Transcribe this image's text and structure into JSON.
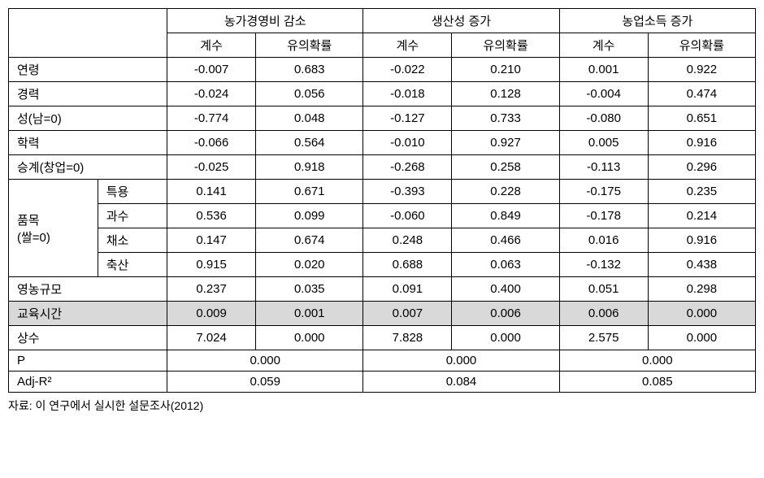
{
  "headerGroups": [
    "농가경영비 감소",
    "생산성 증가",
    "농업소득 증가"
  ],
  "subHeaders": [
    "계수",
    "유의확률"
  ],
  "rowLabels": {
    "age": "연령",
    "career": "경력",
    "sex": "성(남=0)",
    "edu": "학력",
    "succession": "승계(창업=0)",
    "itemGroup": "품목\n(쌀=0)",
    "itemSpecial": "특용",
    "itemFruit": "과수",
    "itemVeg": "채소",
    "itemLivestock": "축산",
    "farmScale": "영농규모",
    "trainingTime": "교육시간",
    "constant": "상수",
    "p": "P",
    "adjR2": "Adj-R²"
  },
  "rows": {
    "age": [
      "-0.007",
      "0.683",
      "-0.022",
      "0.210",
      "0.001",
      "0.922"
    ],
    "career": [
      "-0.024",
      "0.056",
      "-0.018",
      "0.128",
      "-0.004",
      "0.474"
    ],
    "sex": [
      "-0.774",
      "0.048",
      "-0.127",
      "0.733",
      "-0.080",
      "0.651"
    ],
    "edu": [
      "-0.066",
      "0.564",
      "-0.010",
      "0.927",
      "0.005",
      "0.916"
    ],
    "succession": [
      "-0.025",
      "0.918",
      "-0.268",
      "0.258",
      "-0.113",
      "0.296"
    ],
    "itemSpecial": [
      "0.141",
      "0.671",
      "-0.393",
      "0.228",
      "-0.175",
      "0.235"
    ],
    "itemFruit": [
      "0.536",
      "0.099",
      "-0.060",
      "0.849",
      "-0.178",
      "0.214"
    ],
    "itemVeg": [
      "0.147",
      "0.674",
      "0.248",
      "0.466",
      "0.016",
      "0.916"
    ],
    "itemLivestock": [
      "0.915",
      "0.020",
      "0.688",
      "0.063",
      "-0.132",
      "0.438"
    ],
    "farmScale": [
      "0.237",
      "0.035",
      "0.091",
      "0.400",
      "0.051",
      "0.298"
    ],
    "trainingTime": [
      "0.009",
      "0.001",
      "0.007",
      "0.006",
      "0.006",
      "0.000"
    ],
    "constant": [
      "7.024",
      "0.000",
      "7.828",
      "0.000",
      "2.575",
      "0.000"
    ]
  },
  "pRow": [
    "0.000",
    "0.000",
    "0.000"
  ],
  "adjR2Row": [
    "0.059",
    "0.084",
    "0.085"
  ],
  "footnote": "자료: 이 연구에서 실시한 설문조사(2012)"
}
